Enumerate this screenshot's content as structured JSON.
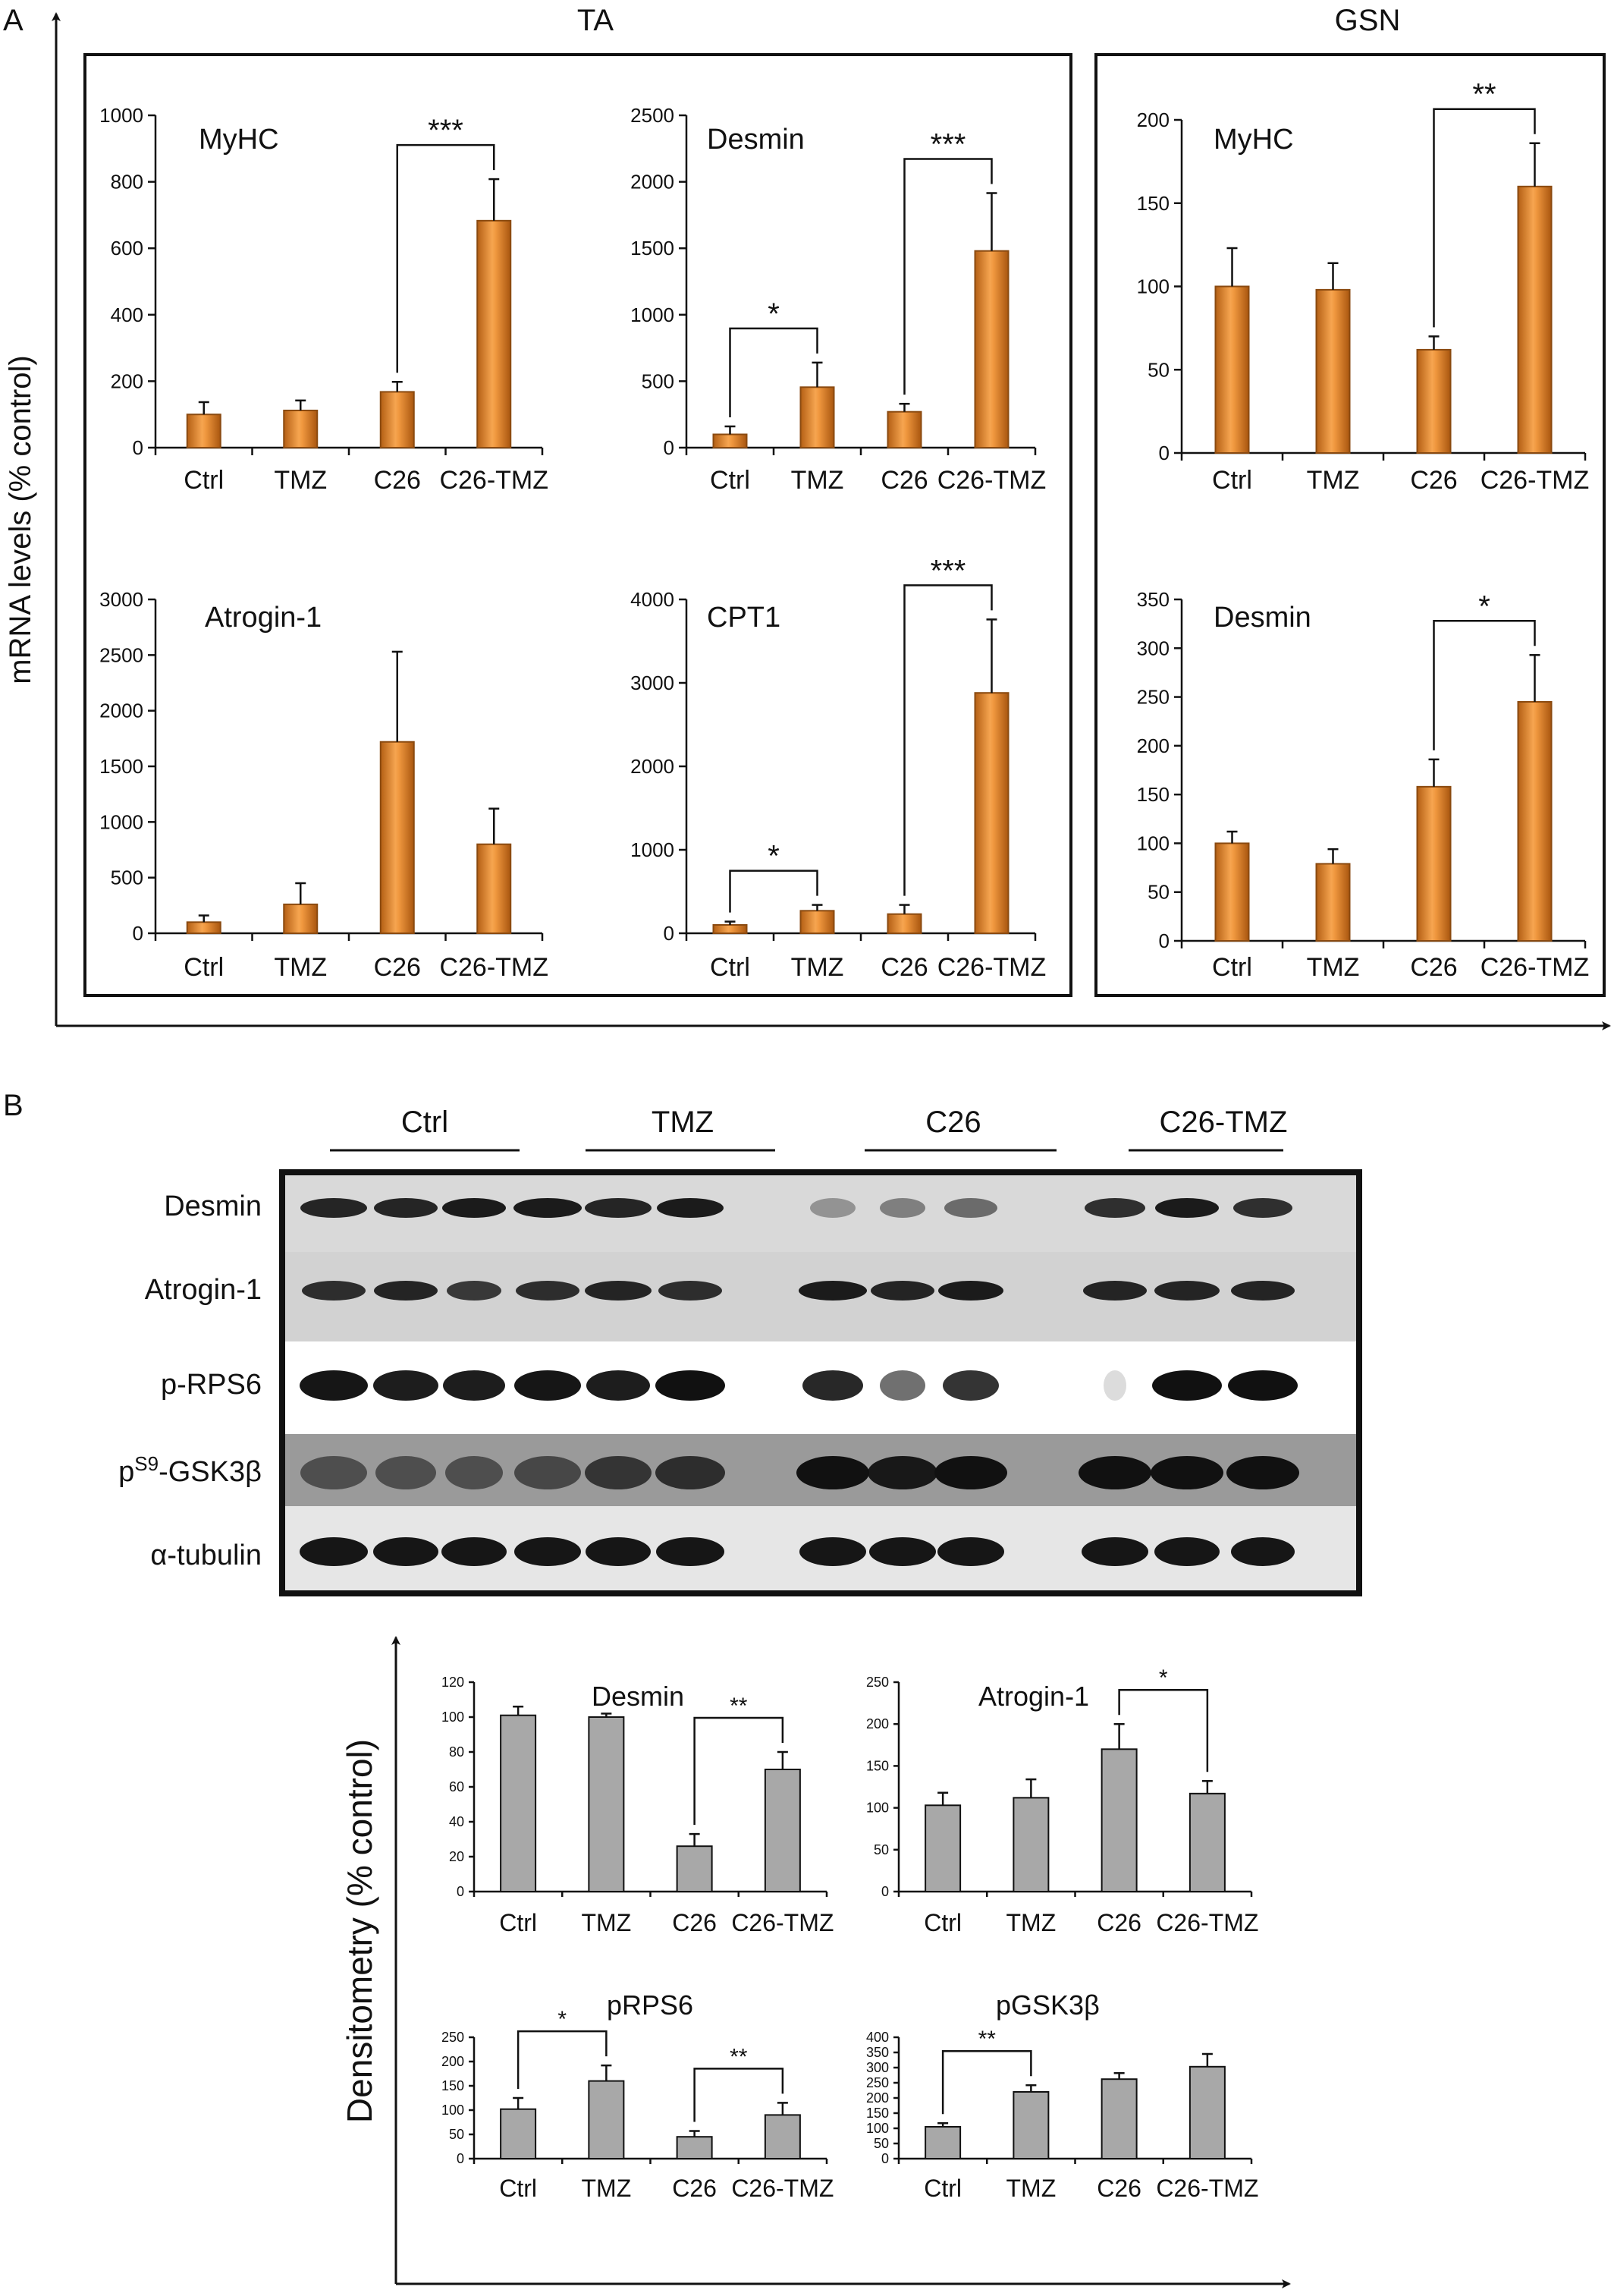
{
  "panel_a": {
    "letter": "A",
    "y_axis_title": "mRNA levels (% control)",
    "groups": [
      {
        "title": "TA"
      },
      {
        "title": "GSN"
      }
    ]
  },
  "panel_b": {
    "letter": "B",
    "y_axis_title": "Densitometry (% control)",
    "blot": {
      "group_labels": [
        "Ctrl",
        "TMZ",
        "C26",
        "C26-TMZ"
      ],
      "rows": [
        {
          "label": "Desmin"
        },
        {
          "label": "Atrogin-1"
        },
        {
          "label": "p-RPS6"
        },
        {
          "label_pre": "p",
          "label_sup": "S9",
          "label_post": "-GSK3β"
        },
        {
          "label": "α-tubulin"
        }
      ]
    }
  },
  "colors": {
    "orange_bar": "#e8903a",
    "gray_bar": "#a8a8a8",
    "axis": "#111111"
  },
  "chart_data": [
    {
      "type": "bar",
      "panel": "A",
      "group": "TA",
      "title": "MyHC",
      "categories": [
        "Ctrl",
        "TMZ",
        "C26",
        "C26-TMZ"
      ],
      "values": [
        100,
        112,
        168,
        683
      ],
      "errors": [
        37,
        30,
        30,
        125
      ],
      "ylim": [
        0,
        1000
      ],
      "yticks": [
        "0",
        "200",
        "400",
        "600",
        "800",
        "1000"
      ],
      "significance": [
        {
          "from": 2,
          "to": 3,
          "label": "***"
        }
      ]
    },
    {
      "type": "bar",
      "panel": "A",
      "group": "TA",
      "title": "Desmin",
      "categories": [
        "Ctrl",
        "TMZ",
        "C26",
        "C26-TMZ"
      ],
      "values": [
        100,
        455,
        270,
        1480
      ],
      "errors": [
        60,
        185,
        60,
        435
      ],
      "ylim": [
        0,
        2500
      ],
      "yticks": [
        "0",
        "500",
        "1000",
        "1500",
        "2000",
        "2500"
      ],
      "significance": [
        {
          "from": 0,
          "to": 1,
          "label": "*"
        },
        {
          "from": 2,
          "to": 3,
          "label": "***"
        }
      ]
    },
    {
      "type": "bar",
      "panel": "A",
      "group": "GSN",
      "title": "MyHC",
      "categories": [
        "Ctrl",
        "TMZ",
        "C26",
        "C26-TMZ"
      ],
      "values": [
        100,
        98,
        62,
        160
      ],
      "errors": [
        23,
        16,
        8,
        26
      ],
      "ylim": [
        0,
        200
      ],
      "yticks": [
        "0",
        "50",
        "100",
        "150",
        "200"
      ],
      "significance": [
        {
          "from": 2,
          "to": 3,
          "label": "**"
        }
      ]
    },
    {
      "type": "bar",
      "panel": "A",
      "group": "TA",
      "title": "Atrogin-1",
      "categories": [
        "Ctrl",
        "TMZ",
        "C26",
        "C26-TMZ"
      ],
      "values": [
        100,
        260,
        1720,
        800
      ],
      "errors": [
        60,
        190,
        810,
        320
      ],
      "ylim": [
        0,
        3000
      ],
      "yticks": [
        "0",
        "500",
        "1000",
        "1500",
        "2000",
        "2500",
        "3000"
      ],
      "significance": []
    },
    {
      "type": "bar",
      "panel": "A",
      "group": "TA",
      "title": "CPT1",
      "categories": [
        "Ctrl",
        "TMZ",
        "C26",
        "C26-TMZ"
      ],
      "values": [
        100,
        270,
        230,
        2880
      ],
      "errors": [
        40,
        70,
        110,
        880
      ],
      "ylim": [
        0,
        4000
      ],
      "yticks": [
        "0",
        "1000",
        "2000",
        "3000",
        "4000"
      ],
      "significance": [
        {
          "from": 0,
          "to": 1,
          "label": "*"
        },
        {
          "from": 2,
          "to": 3,
          "label": "***"
        }
      ]
    },
    {
      "type": "bar",
      "panel": "A",
      "group": "GSN",
      "title": "Desmin",
      "categories": [
        "Ctrl",
        "TMZ",
        "C26",
        "C26-TMZ"
      ],
      "values": [
        100,
        79,
        158,
        245
      ],
      "errors": [
        12,
        15,
        28,
        48
      ],
      "ylim": [
        0,
        350
      ],
      "yticks": [
        "0",
        "50",
        "100",
        "150",
        "200",
        "250",
        "300",
        "350"
      ],
      "significance": [
        {
          "from": 2,
          "to": 3,
          "label": "*"
        }
      ]
    },
    {
      "type": "bar",
      "panel": "B",
      "title": "Desmin",
      "categories": [
        "Ctrl",
        "TMZ",
        "C26",
        "C26-TMZ"
      ],
      "values": [
        101,
        100,
        26,
        70
      ],
      "errors": [
        5,
        2,
        7,
        10
      ],
      "ylim": [
        0,
        120
      ],
      "yticks": [
        "0",
        "20",
        "40",
        "60",
        "80",
        "100",
        "120"
      ],
      "significance": [
        {
          "from": 2,
          "to": 3,
          "label": "**"
        }
      ]
    },
    {
      "type": "bar",
      "panel": "B",
      "title": "Atrogin-1",
      "categories": [
        "Ctrl",
        "TMZ",
        "C26",
        "C26-TMZ"
      ],
      "values": [
        103,
        112,
        170,
        117
      ],
      "errors": [
        15,
        22,
        30,
        15
      ],
      "ylim": [
        0,
        250
      ],
      "yticks": [
        "0",
        "50",
        "100",
        "150",
        "200",
        "250"
      ],
      "significance": [
        {
          "from": 2,
          "to": 3,
          "label": "*"
        }
      ]
    },
    {
      "type": "bar",
      "panel": "B",
      "title": "pRPS6",
      "categories": [
        "Ctrl",
        "TMZ",
        "C26",
        "C26-TMZ"
      ],
      "values": [
        102,
        160,
        45,
        90
      ],
      "errors": [
        23,
        32,
        12,
        25
      ],
      "ylim": [
        0,
        250
      ],
      "yticks": [
        "0",
        "50",
        "100",
        "150",
        "200",
        "250"
      ],
      "significance": [
        {
          "from": 0,
          "to": 1,
          "label": "*"
        },
        {
          "from": 2,
          "to": 3,
          "label": "**"
        }
      ]
    },
    {
      "type": "bar",
      "panel": "B",
      "title": "pGSK3β",
      "categories": [
        "Ctrl",
        "TMZ",
        "C26",
        "C26-TMZ"
      ],
      "values": [
        105,
        220,
        262,
        303
      ],
      "errors": [
        12,
        22,
        20,
        42
      ],
      "ylim": [
        0,
        400
      ],
      "yticks": [
        "0",
        "50",
        "100",
        "150",
        "200",
        "250",
        "300",
        "350",
        "400"
      ],
      "significance": [
        {
          "from": 0,
          "to": 1,
          "label": "**"
        }
      ]
    }
  ]
}
